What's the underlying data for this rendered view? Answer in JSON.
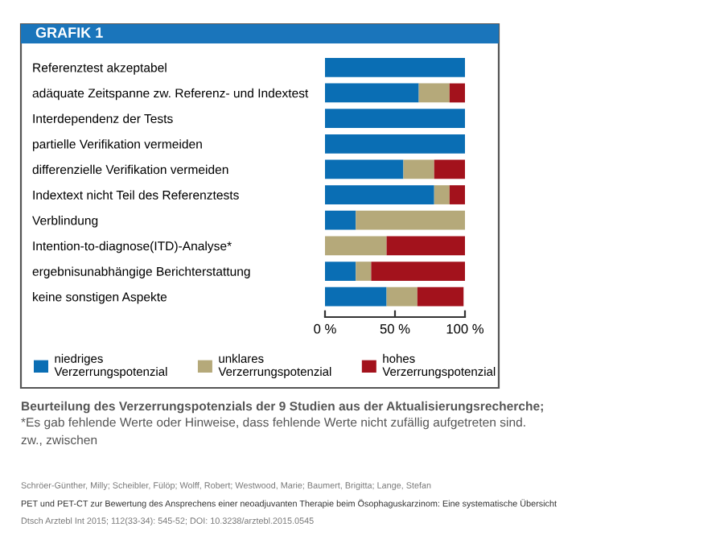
{
  "chart_data": {
    "type": "bar",
    "orientation": "horizontal",
    "stacked": true,
    "title": "GRAFIK 1",
    "categories": [
      "Referenztest akzeptabel",
      "adäquate Zeitspanne zw. Referenz- und Indextest",
      "Interdependenz der Tests",
      "partielle Verifikation vermeiden",
      "differenzielle Verifikation vermeiden",
      "Indextext nicht Teil des Referenztests",
      "Verblindung",
      "Intention-to-diagnose(ITD)-Analyse*",
      "ergebnisunabhängige Berichterstattung",
      "keine sonstigen Aspekte"
    ],
    "series": [
      {
        "name": "niedriges Verzerrungspotenzial",
        "color": "#0a6eb4",
        "values": [
          100,
          67,
          100,
          100,
          56,
          78,
          22,
          0,
          22,
          44
        ]
      },
      {
        "name": "unklares Verzerrungspotenzial",
        "color": "#b5a97a",
        "values": [
          0,
          22,
          0,
          0,
          22,
          11,
          78,
          44,
          11,
          22
        ]
      },
      {
        "name": "hohes Verzerrungspotenzial",
        "color": "#a3121c",
        "values": [
          0,
          11,
          0,
          0,
          22,
          11,
          0,
          56,
          67,
          33
        ]
      }
    ],
    "xlim": [
      0,
      100
    ],
    "xticks": [
      {
        "value": 0,
        "label": "0 %"
      },
      {
        "value": 50,
        "label": "50 %"
      },
      {
        "value": 100,
        "label": "100 %"
      }
    ],
    "legend": "bottom",
    "grid": false,
    "annotations": [
      "Beurteilung des Verzerrungspotenzials der 9 Studien aus der Aktualisierungsrecherche;",
      "*Es gab fehlende Werte oder Hinweise, dass fehlende Werte nicht zufällig aufgetreten sind.",
      "zw., zwischen",
      "Schröer-Günther, Milly; Scheibler, Fülöp; Wolff, Robert; Westwood, Marie; Baumert, Brigitta; Lange, Stefan",
      "PET und PET-CT zur Bewertung des Ansprechens einer neoadjuvanten Therapie beim Ösophaguskarzinom: Eine systematische Übersicht",
      "Dtsch Arztebl Int 2015; 112(33-34): 545-52; DOI: 10.3238/arztebl.2015.0545"
    ]
  }
}
